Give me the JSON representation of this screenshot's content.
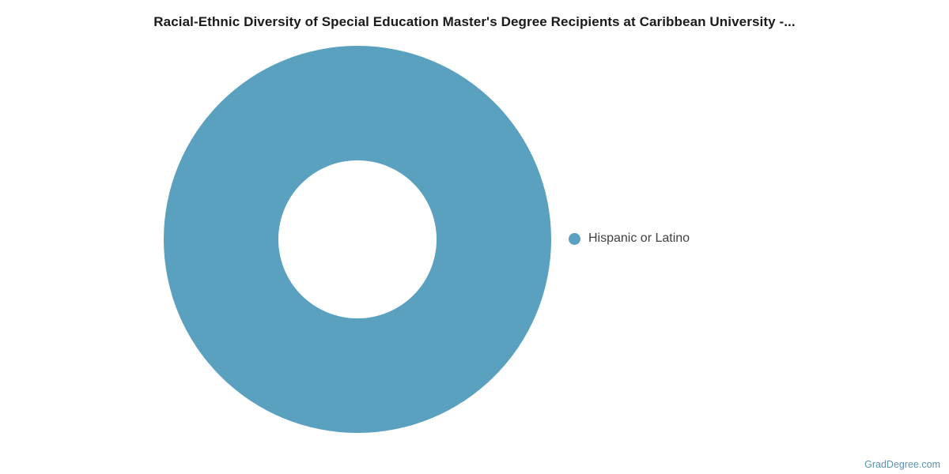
{
  "watermark": {
    "text": "GradDegree.com",
    "color": "#5b92ad"
  },
  "chart_data": {
    "type": "pie",
    "subtype": "donut",
    "title": "Racial-Ethnic Diversity of Special Education Master's Degree Recipients at Caribbean University -...",
    "title_color": "#1a1a1a",
    "labels": [
      "Hispanic or Latino"
    ],
    "values": [
      100
    ],
    "unit": "percent",
    "colors": [
      "#5aa0bf"
    ],
    "inner_radius_ratio": 0.408,
    "legend_position": "right",
    "legend_text_color": "#404040",
    "background": "#ffffff"
  }
}
